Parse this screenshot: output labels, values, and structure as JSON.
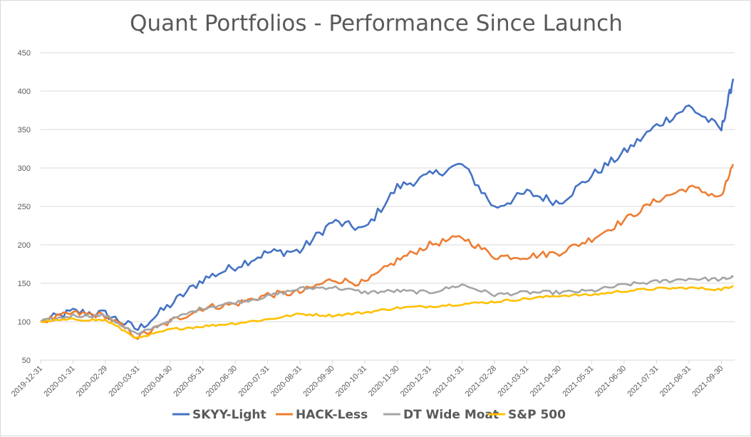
{
  "colors": {
    "skyy": "#4472c4",
    "hack": "#ed7d31",
    "dtwm": "#a5a5a5",
    "sp500": "#ffc000"
  },
  "chart_data": {
    "type": "line",
    "title": "Quant Portfolios - Performance Since Launch",
    "xlabel": "",
    "ylabel": "",
    "ylim": [
      50,
      450
    ],
    "yticks": [
      50,
      100,
      150,
      200,
      250,
      300,
      350,
      400,
      450
    ],
    "grid": true,
    "legend": "bottom",
    "categories": [
      "2019-12-31",
      "2020-01-31",
      "2020-02-29",
      "2020-03-31",
      "2020-04-30",
      "2020-05-31",
      "2020-06-30",
      "2020-07-31",
      "2020-08-31",
      "2020-09-30",
      "2020-10-31",
      "2020-11-30",
      "2020-12-31",
      "2021-01-31",
      "2021-02-28",
      "2021-03-31",
      "2021-04-30",
      "2021-05-31",
      "2021-06-30",
      "2021-07-31",
      "2021-08-31",
      "2021-09-30"
    ],
    "series": [
      {
        "name": "SKYY-Light",
        "values": [
          100,
          113,
          110,
          90,
          122,
          155,
          172,
          190,
          192,
          230,
          220,
          275,
          290,
          305,
          248,
          268,
          255,
          290,
          320,
          355,
          380,
          350
        ],
        "end_value": 416
      },
      {
        "name": "HACK-Less",
        "values": [
          100,
          111,
          108,
          80,
          100,
          118,
          123,
          135,
          138,
          155,
          150,
          180,
          200,
          210,
          185,
          185,
          190,
          208,
          232,
          258,
          275,
          262
        ],
        "end_value": 305
      },
      {
        "name": "DT Wide Moat",
        "values": [
          100,
          108,
          108,
          83,
          102,
          118,
          125,
          133,
          143,
          145,
          138,
          140,
          138,
          148,
          135,
          138,
          138,
          140,
          148,
          152,
          156,
          155
        ],
        "end_value": 158
      },
      {
        "name": "S&P 500",
        "values": [
          100,
          103,
          102,
          78,
          90,
          94,
          98,
          103,
          110,
          108,
          112,
          118,
          120,
          123,
          126,
          130,
          134,
          135,
          140,
          143,
          144,
          142
        ],
        "end_value": 147
      }
    ]
  }
}
